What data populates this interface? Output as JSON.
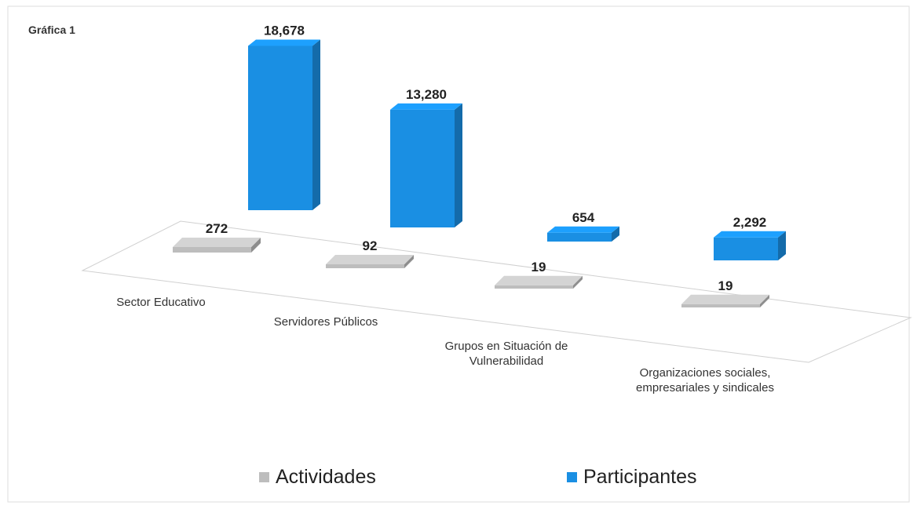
{
  "chart_data": {
    "type": "bar3d",
    "title": "Gráfica 1",
    "categories": [
      "Sector Educativo",
      "Servidores Públicos",
      "Grupos en Situación de Vulnerabilidad",
      "Organizaciones sociales, empresariales y sindicales"
    ],
    "series": [
      {
        "name": "Actividades",
        "color": "#bdbdbd",
        "values": [
          272,
          92,
          19,
          19
        ]
      },
      {
        "name": "Participantes",
        "color": "#1a8fe3",
        "values": [
          18678,
          13280,
          654,
          2292
        ],
        "value_labels": [
          "18,678",
          "13,280",
          "654",
          "2,292"
        ]
      }
    ],
    "legend": "bottom"
  }
}
